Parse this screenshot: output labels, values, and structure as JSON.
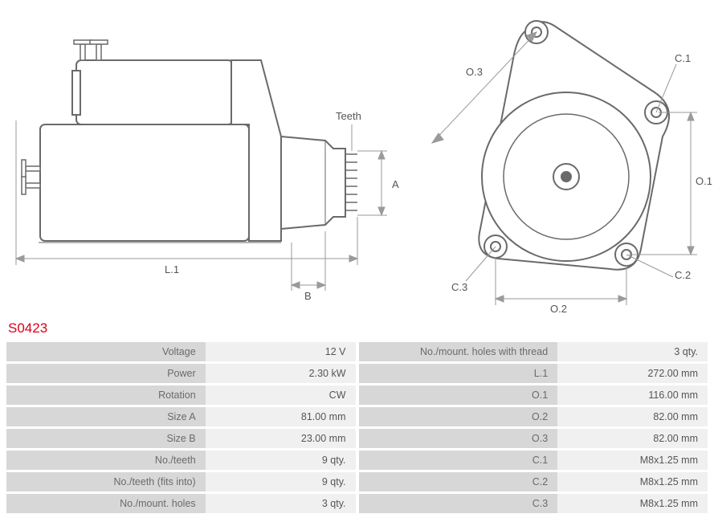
{
  "part_number": "S0423",
  "diagram_labels": {
    "teeth": "Teeth",
    "A": "A",
    "B": "B",
    "L1": "L.1",
    "O1": "O.1",
    "O2": "O.2",
    "O3": "O.3",
    "C1": "C.1",
    "C2": "C.2",
    "C3": "C.3"
  },
  "colors": {
    "stroke": "#6a6a6a",
    "thin": "#9a9a9a",
    "fill": "#ffffff",
    "accent": "#d9001b",
    "row_label_bg": "#d7d7d7",
    "row_value_bg": "#f0f0f0",
    "text": "#555555"
  },
  "specs_left": [
    {
      "label": "Voltage",
      "value": "12 V"
    },
    {
      "label": "Power",
      "value": "2.30 kW"
    },
    {
      "label": "Rotation",
      "value": "CW"
    },
    {
      "label": "Size A",
      "value": "81.00 mm"
    },
    {
      "label": "Size B",
      "value": "23.00 mm"
    },
    {
      "label": "No./teeth",
      "value": "9 qty."
    },
    {
      "label": "No./teeth (fits into)",
      "value": "9 qty."
    },
    {
      "label": "No./mount. holes",
      "value": "3 qty."
    }
  ],
  "specs_right": [
    {
      "label": "No./mount. holes with thread",
      "value": "3 qty."
    },
    {
      "label": "L.1",
      "value": "272.00 mm"
    },
    {
      "label": "O.1",
      "value": "116.00 mm"
    },
    {
      "label": "O.2",
      "value": "82.00 mm"
    },
    {
      "label": "O.3",
      "value": "82.00 mm"
    },
    {
      "label": "C.1",
      "value": "M8x1.25 mm"
    },
    {
      "label": "C.2",
      "value": "M8x1.25 mm"
    },
    {
      "label": "C.3",
      "value": "M8x1.25 mm"
    }
  ]
}
